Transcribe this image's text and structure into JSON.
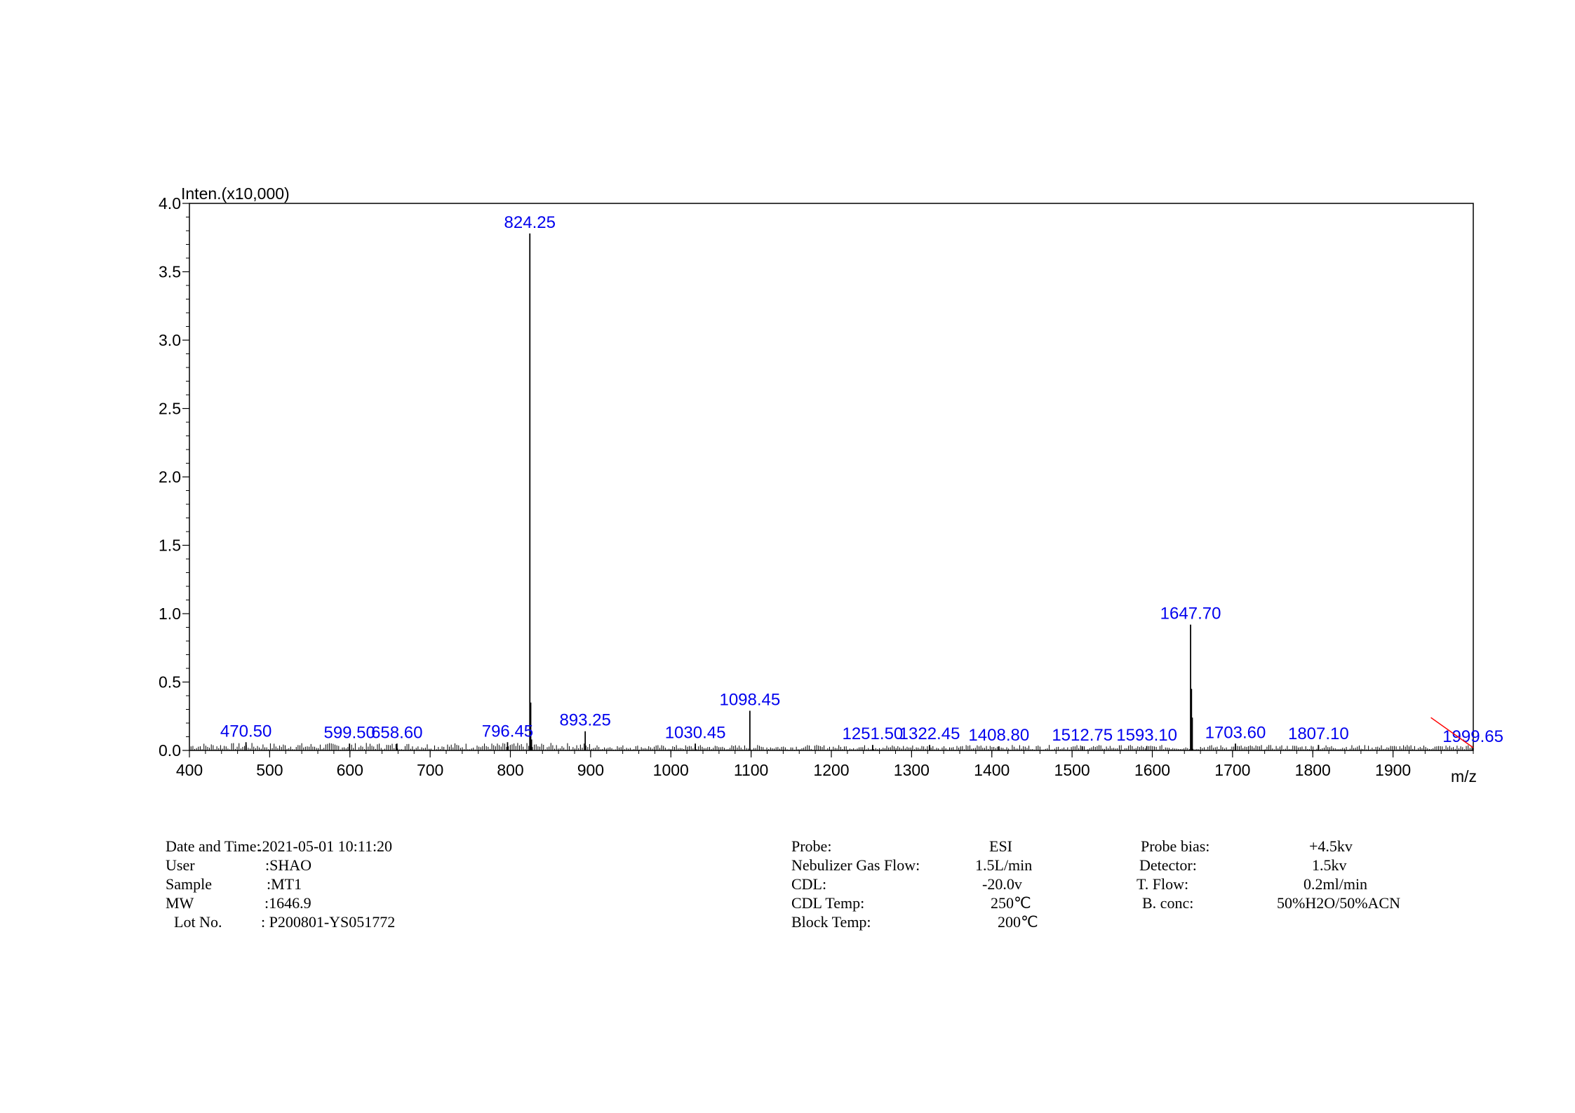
{
  "chart_data": {
    "type": "mass-spectrum",
    "ylabel": "Inten.(x10,000)",
    "xlabel": "m/z",
    "xlim": [
      400,
      2000
    ],
    "ylim": [
      0,
      4.0
    ],
    "x_ticks": [
      "400",
      "500",
      "600",
      "700",
      "800",
      "900",
      "1000",
      "1100",
      "1200",
      "1300",
      "1400",
      "1500",
      "1600",
      "1700",
      "1800",
      "1900"
    ],
    "y_ticks": [
      "0.0",
      "0.5",
      "1.0",
      "1.5",
      "2.0",
      "2.5",
      "3.0",
      "3.5",
      "4.0"
    ],
    "peaks": [
      {
        "x": 470.5,
        "y": 0.06,
        "label": "470.50"
      },
      {
        "x": 599.5,
        "y": 0.05,
        "label": "599.50"
      },
      {
        "x": 658.6,
        "y": 0.05,
        "label": "658.60"
      },
      {
        "x": 796.45,
        "y": 0.06,
        "label": "796.45"
      },
      {
        "x": 824.25,
        "y": 3.78,
        "label": "824.25"
      },
      {
        "x": 893.25,
        "y": 0.14,
        "label": "893.25"
      },
      {
        "x": 1030.45,
        "y": 0.05,
        "label": "1030.45"
      },
      {
        "x": 1098.45,
        "y": 0.29,
        "label": "1098.45"
      },
      {
        "x": 1251.5,
        "y": 0.04,
        "label": "1251.50"
      },
      {
        "x": 1322.45,
        "y": 0.04,
        "label": "1322.45"
      },
      {
        "x": 1408.8,
        "y": 0.03,
        "label": "1408.80"
      },
      {
        "x": 1512.75,
        "y": 0.03,
        "label": "1512.75"
      },
      {
        "x": 1593.1,
        "y": 0.03,
        "label": "1593.10"
      },
      {
        "x": 1647.7,
        "y": 0.92,
        "label": "1647.70"
      },
      {
        "x": 1703.6,
        "y": 0.05,
        "label": "1703.60"
      },
      {
        "x": 1807.1,
        "y": 0.04,
        "label": "1807.10"
      },
      {
        "x": 1999.65,
        "y": 0.02,
        "label": "1999.65"
      }
    ],
    "extra_peaks": [
      {
        "x": 825.25,
        "y": 0.35
      },
      {
        "x": 1648.7,
        "y": 0.45
      },
      {
        "x": 1649.7,
        "y": 0.24
      },
      {
        "x": 826.25,
        "y": 0.08
      }
    ],
    "colors": {
      "axis": "#000000",
      "peaks": "#000000",
      "labels": "#0000ee",
      "marker": "#ff0000"
    }
  },
  "info": {
    "left": [
      {
        "label": "Date and Time:",
        "value": ".2021-05-01 10:11:20"
      },
      {
        "label": "User",
        "value": ":SHAO"
      },
      {
        "label": "Sample",
        "value": ":MT1"
      },
      {
        "label": "MW",
        "value": ":1646.9"
      },
      {
        "label": "Lot No.",
        "value": ": P200801-YS051772"
      }
    ],
    "middle": [
      {
        "label": "Probe:",
        "value": "ESI"
      },
      {
        "label": "Nebulizer Gas Flow:",
        "value": "1.5L/min"
      },
      {
        "label": "CDL:",
        "value": "-20.0v"
      },
      {
        "label": "CDL Temp:",
        "value": "250℃"
      },
      {
        "label": "Block Temp:",
        "value": "200℃"
      }
    ],
    "right": [
      {
        "label": "Probe bias:",
        "value": "+4.5kv"
      },
      {
        "label": "Detector:",
        "value": "1.5kv"
      },
      {
        "label": "T. Flow:",
        "value": "0.2ml/min"
      },
      {
        "label": "B. conc:",
        "value": "50%H2O/50%ACN"
      }
    ]
  }
}
